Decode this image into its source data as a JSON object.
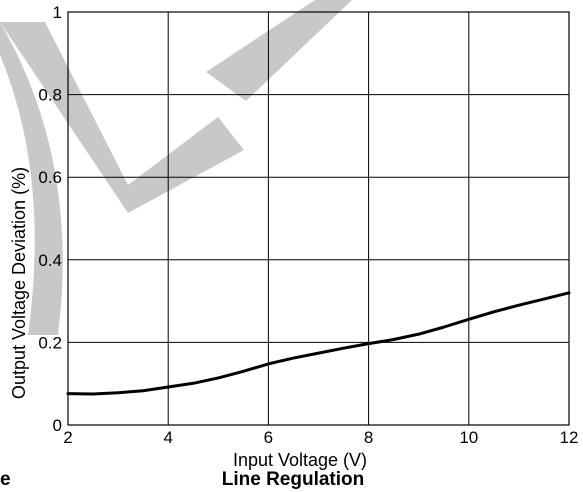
{
  "chart_data": {
    "type": "line",
    "title": "Line Regulation",
    "xlabel": "Input Voltage (V)",
    "ylabel": "Output Voltage Deviation (%)",
    "xlim": [
      2,
      12
    ],
    "ylim": [
      0,
      1
    ],
    "x_ticks": [
      2,
      4,
      6,
      8,
      10,
      12
    ],
    "y_ticks": [
      0,
      0.2,
      0.4,
      0.6,
      0.8,
      1
    ],
    "x_tick_labels": [
      "2",
      "4",
      "6",
      "8",
      "10",
      "12"
    ],
    "y_tick_labels": [
      "0",
      "0.2",
      "0.4",
      "0.6",
      "0.8",
      "1"
    ],
    "grid": true,
    "series": [
      {
        "x": [
          2,
          2.5,
          3,
          3.5,
          4,
          4.5,
          5,
          5.5,
          6,
          6.5,
          7,
          7.5,
          8,
          8.5,
          9,
          9.5,
          10,
          10.5,
          11,
          11.5,
          12
        ],
        "y": [
          0.076,
          0.075,
          0.078,
          0.083,
          0.092,
          0.101,
          0.114,
          0.13,
          0.148,
          0.162,
          0.174,
          0.186,
          0.197,
          0.207,
          0.22,
          0.237,
          0.256,
          0.274,
          0.29,
          0.305,
          0.32
        ]
      }
    ],
    "partial_caption": "e",
    "colors": {
      "line": "#000000",
      "grid": "#000000",
      "watermark": "#c8c8c8"
    }
  }
}
